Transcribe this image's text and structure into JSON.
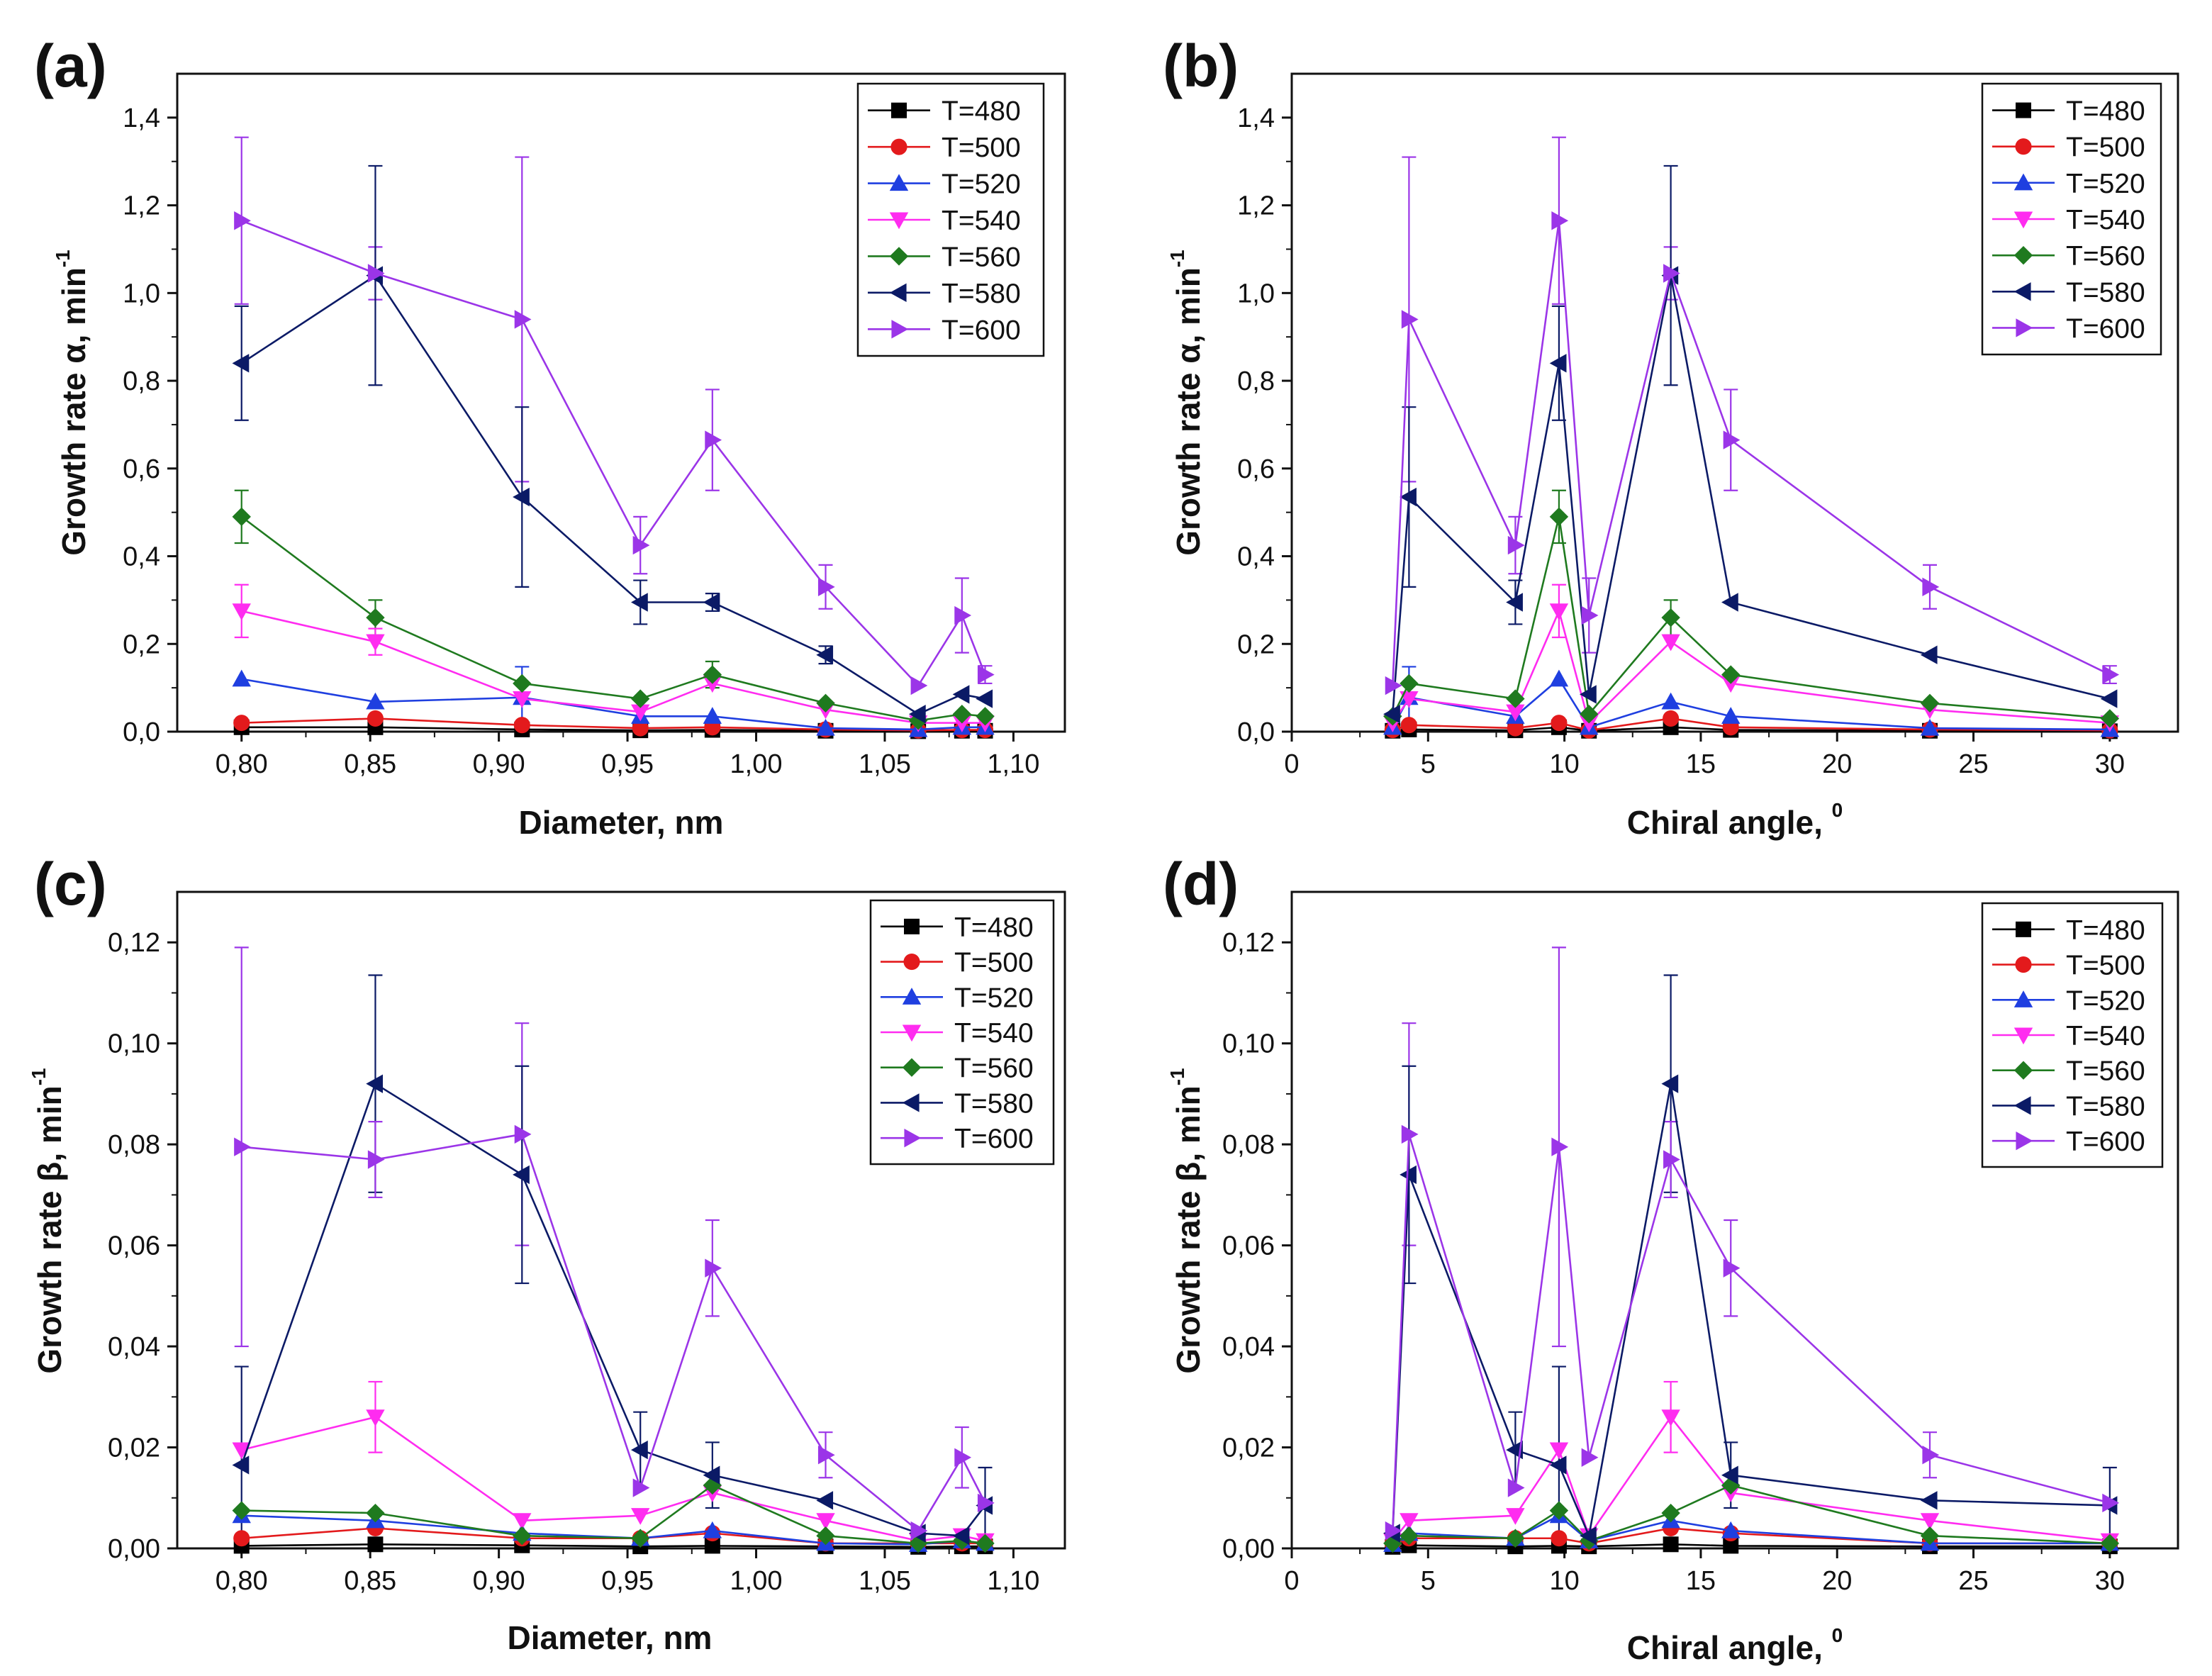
{
  "series_meta": [
    {
      "name": "T=480",
      "color": "#000000",
      "marker": "square"
    },
    {
      "name": "T=500",
      "color": "#e31a1c",
      "marker": "circle"
    },
    {
      "name": "T=520",
      "color": "#1f3fe0",
      "marker": "triangle-up"
    },
    {
      "name": "T=540",
      "color": "#ff2cf0",
      "marker": "triangle-down"
    },
    {
      "name": "T=560",
      "color": "#1f7a1f",
      "marker": "diamond"
    },
    {
      "name": "T=580",
      "color": "#0b1a66",
      "marker": "triangle-left"
    },
    {
      "name": "T=600",
      "color": "#9b35e8",
      "marker": "triangle-right"
    }
  ],
  "chart_data": [
    {
      "panel": "(a)",
      "type": "line",
      "xlabel": "Diameter, nm",
      "ylabel": "Growth rate α, min",
      "ylabel_sup": "-1",
      "xlim": [
        0.775,
        1.12
      ],
      "ylim": [
        0,
        1.5
      ],
      "xticks": [
        0.8,
        0.85,
        0.9,
        0.95,
        1.0,
        1.05,
        1.1
      ],
      "xtick_labels": [
        "0,80",
        "0,85",
        "0,90",
        "0,95",
        "1,00",
        "1,05",
        "1,10"
      ],
      "yticks": [
        0,
        0.2,
        0.4,
        0.6,
        0.8,
        1.0,
        1.2,
        1.4
      ],
      "ytick_labels": [
        "0,0",
        "0,2",
        "0,4",
        "0,6",
        "0,8",
        "1,0",
        "1,2",
        "1,4"
      ],
      "legend_position": "top-right",
      "x": [
        0.8,
        0.852,
        0.909,
        0.955,
        0.983,
        1.027,
        1.063,
        1.08,
        1.089
      ],
      "series": [
        {
          "name": "T=480",
          "values": [
            0.01,
            0.01,
            0.005,
            0.003,
            0.004,
            0.002,
            0.001,
            0.002,
            0.002
          ]
        },
        {
          "name": "T=500",
          "values": [
            0.02,
            0.03,
            0.015,
            0.008,
            0.01,
            0.005,
            0.003,
            0.004,
            0.004
          ]
        },
        {
          "name": "T=520",
          "values": [
            0.12,
            0.068,
            0.078,
            0.035,
            0.035,
            0.008,
            0.005,
            0.01,
            0.01
          ]
        },
        {
          "name": "T=540",
          "values": [
            0.275,
            0.205,
            0.075,
            0.045,
            0.11,
            0.05,
            0.02,
            0.02,
            0.02
          ]
        },
        {
          "name": "T=560",
          "values": [
            0.49,
            0.26,
            0.11,
            0.075,
            0.13,
            0.065,
            0.025,
            0.04,
            0.035
          ]
        },
        {
          "name": "T=580",
          "values": [
            0.84,
            1.04,
            0.535,
            0.295,
            0.295,
            0.175,
            0.04,
            0.085,
            0.075
          ]
        },
        {
          "name": "T=600",
          "values": [
            1.165,
            1.045,
            0.94,
            0.425,
            0.665,
            0.33,
            0.105,
            0.265,
            0.13
          ]
        }
      ],
      "error_bars": [
        {
          "series": "T=600",
          "x": 0.8,
          "err": 0.19
        },
        {
          "series": "T=580",
          "x": 0.8,
          "err": 0.13
        },
        {
          "series": "T=560",
          "x": 0.8,
          "err": 0.06
        },
        {
          "series": "T=540",
          "x": 0.8,
          "err": 0.06
        },
        {
          "series": "T=600",
          "x": 0.852,
          "err": 0.06
        },
        {
          "series": "T=580",
          "x": 0.852,
          "err": 0.25
        },
        {
          "series": "T=560",
          "x": 0.852,
          "err": 0.04
        },
        {
          "series": "T=540",
          "x": 0.852,
          "err": 0.03
        },
        {
          "series": "T=600",
          "x": 0.909,
          "err": 0.37
        },
        {
          "series": "T=580",
          "x": 0.909,
          "err": 0.205
        },
        {
          "series": "T=520",
          "x": 0.909,
          "err": 0.07
        },
        {
          "series": "T=600",
          "x": 0.955,
          "err": 0.065
        },
        {
          "series": "T=580",
          "x": 0.955,
          "err": 0.05
        },
        {
          "series": "T=600",
          "x": 0.983,
          "err": 0.115
        },
        {
          "series": "T=580",
          "x": 0.983,
          "err": 0.02
        },
        {
          "series": "T=560",
          "x": 0.983,
          "err": 0.03
        },
        {
          "series": "T=600",
          "x": 1.027,
          "err": 0.05
        },
        {
          "series": "T=580",
          "x": 1.027,
          "err": 0.02
        },
        {
          "series": "T=600",
          "x": 1.08,
          "err": 0.085
        },
        {
          "series": "T=600",
          "x": 1.089,
          "err": 0.02
        }
      ]
    },
    {
      "panel": "(b)",
      "type": "line",
      "xlabel": "Chiral angle, ",
      "xlabel_sup": "0",
      "ylabel": "Growth rate α, min",
      "ylabel_sup": "-1",
      "xlim": [
        0,
        32.5
      ],
      "ylim": [
        0,
        1.5
      ],
      "xticks": [
        0,
        5,
        10,
        15,
        20,
        25,
        30
      ],
      "xtick_labels": [
        "0",
        "5",
        "10",
        "15",
        "20",
        "25",
        "30"
      ],
      "yticks": [
        0,
        0.2,
        0.4,
        0.6,
        0.8,
        1.0,
        1.2,
        1.4
      ],
      "ytick_labels": [
        "0,0",
        "0,2",
        "0,4",
        "0,6",
        "0,8",
        "1,0",
        "1,2",
        "1,4"
      ],
      "legend_position": "top-right",
      "x": [
        3.7,
        4.3,
        8.2,
        9.8,
        10.9,
        13.9,
        16.1,
        23.4,
        30.0
      ],
      "series": [
        {
          "name": "T=480",
          "values": [
            0.002,
            0.005,
            0.003,
            0.01,
            0.002,
            0.01,
            0.004,
            0.002,
            0.001
          ]
        },
        {
          "name": "T=500",
          "values": [
            0.004,
            0.015,
            0.008,
            0.02,
            0.003,
            0.03,
            0.01,
            0.005,
            0.003
          ]
        },
        {
          "name": "T=520",
          "values": [
            0.01,
            0.078,
            0.035,
            0.12,
            0.01,
            0.068,
            0.035,
            0.008,
            0.005
          ]
        },
        {
          "name": "T=540",
          "values": [
            0.02,
            0.075,
            0.045,
            0.275,
            0.02,
            0.205,
            0.11,
            0.05,
            0.02
          ]
        },
        {
          "name": "T=560",
          "values": [
            0.035,
            0.11,
            0.075,
            0.49,
            0.04,
            0.26,
            0.13,
            0.065,
            0.03
          ]
        },
        {
          "name": "T=580",
          "values": [
            0.04,
            0.535,
            0.295,
            0.84,
            0.085,
            1.04,
            0.295,
            0.175,
            0.075
          ]
        },
        {
          "name": "T=600",
          "values": [
            0.105,
            0.94,
            0.425,
            1.165,
            0.265,
            1.045,
            0.665,
            0.33,
            0.13
          ]
        }
      ],
      "error_bars": [
        {
          "series": "T=600",
          "x": 4.3,
          "err": 0.37
        },
        {
          "series": "T=580",
          "x": 4.3,
          "err": 0.205
        },
        {
          "series": "T=520",
          "x": 4.3,
          "err": 0.07
        },
        {
          "series": "T=600",
          "x": 8.2,
          "err": 0.065
        },
        {
          "series": "T=580",
          "x": 8.2,
          "err": 0.05
        },
        {
          "series": "T=600",
          "x": 9.8,
          "err": 0.19
        },
        {
          "series": "T=580",
          "x": 9.8,
          "err": 0.13
        },
        {
          "series": "T=560",
          "x": 9.8,
          "err": 0.06
        },
        {
          "series": "T=540",
          "x": 9.8,
          "err": 0.06
        },
        {
          "series": "T=600",
          "x": 10.9,
          "err": 0.085
        },
        {
          "series": "T=600",
          "x": 13.9,
          "err": 0.06
        },
        {
          "series": "T=580",
          "x": 13.9,
          "err": 0.25
        },
        {
          "series": "T=560",
          "x": 13.9,
          "err": 0.04
        },
        {
          "series": "T=600",
          "x": 16.1,
          "err": 0.115
        },
        {
          "series": "T=600",
          "x": 23.4,
          "err": 0.05
        },
        {
          "series": "T=600",
          "x": 30.0,
          "err": 0.02
        }
      ]
    },
    {
      "panel": "(c)",
      "type": "line",
      "xlabel": "Diameter, nm",
      "ylabel": "Growth rate β, min",
      "ylabel_sup": "-1",
      "xlim": [
        0.775,
        1.12
      ],
      "ylim": [
        0,
        0.13
      ],
      "xticks": [
        0.8,
        0.85,
        0.9,
        0.95,
        1.0,
        1.05,
        1.1
      ],
      "xtick_labels": [
        "0,80",
        "0,85",
        "0,90",
        "0,95",
        "1,00",
        "1,05",
        "1,10"
      ],
      "yticks": [
        0,
        0.02,
        0.04,
        0.06,
        0.08,
        0.1,
        0.12
      ],
      "ytick_labels": [
        "0,00",
        "0,02",
        "0,04",
        "0,06",
        "0,08",
        "0,10",
        "0,12"
      ],
      "legend_position": "top-right",
      "x": [
        0.8,
        0.852,
        0.909,
        0.955,
        0.983,
        1.027,
        1.063,
        1.08,
        1.089
      ],
      "series": [
        {
          "name": "T=480",
          "values": [
            0.0005,
            0.0008,
            0.0006,
            0.0004,
            0.0005,
            0.0004,
            0.0003,
            0.0004,
            0.0004
          ]
        },
        {
          "name": "T=500",
          "values": [
            0.002,
            0.004,
            0.002,
            0.002,
            0.003,
            0.001,
            0.001,
            0.001,
            0.001
          ]
        },
        {
          "name": "T=520",
          "values": [
            0.0065,
            0.0055,
            0.003,
            0.002,
            0.0035,
            0.001,
            0.0008,
            0.0015,
            0.001
          ]
        },
        {
          "name": "T=540",
          "values": [
            0.0195,
            0.026,
            0.0055,
            0.0065,
            0.011,
            0.0055,
            0.0015,
            0.0025,
            0.0015
          ]
        },
        {
          "name": "T=560",
          "values": [
            0.0075,
            0.007,
            0.0025,
            0.002,
            0.0125,
            0.0025,
            0.001,
            0.0015,
            0.001
          ]
        },
        {
          "name": "T=580",
          "values": [
            0.0165,
            0.092,
            0.074,
            0.0195,
            0.0145,
            0.0095,
            0.003,
            0.0025,
            0.0085
          ]
        },
        {
          "name": "T=600",
          "values": [
            0.0795,
            0.077,
            0.082,
            0.012,
            0.0555,
            0.0185,
            0.0035,
            0.018,
            0.009
          ]
        }
      ],
      "error_bars": [
        {
          "series": "T=600",
          "x": 0.8,
          "err": 0.0395
        },
        {
          "series": "T=580",
          "x": 0.8,
          "err": 0.0195
        },
        {
          "series": "T=540",
          "x": 0.852,
          "err": 0.007
        },
        {
          "series": "T=580",
          "x": 0.852,
          "err": 0.0215
        },
        {
          "series": "T=600",
          "x": 0.852,
          "err": 0.0075
        },
        {
          "series": "T=600",
          "x": 0.909,
          "err": 0.022
        },
        {
          "series": "T=580",
          "x": 0.909,
          "err": 0.0215
        },
        {
          "series": "T=580",
          "x": 0.955,
          "err": 0.0075
        },
        {
          "series": "T=600",
          "x": 0.983,
          "err": 0.0095
        },
        {
          "series": "T=580",
          "x": 0.983,
          "err": 0.0065
        },
        {
          "series": "T=600",
          "x": 1.027,
          "err": 0.0045
        },
        {
          "series": "T=600",
          "x": 1.08,
          "err": 0.006
        },
        {
          "series": "T=580",
          "x": 1.089,
          "err": 0.0075
        }
      ]
    },
    {
      "panel": "(d)",
      "type": "line",
      "xlabel": "Chiral angle, ",
      "xlabel_sup": "0",
      "ylabel": "Growth rate β, min",
      "ylabel_sup": "-1",
      "xlim": [
        0,
        32.5
      ],
      "ylim": [
        0,
        0.13
      ],
      "xticks": [
        0,
        5,
        10,
        15,
        20,
        25,
        30
      ],
      "xtick_labels": [
        "0",
        "5",
        "10",
        "15",
        "20",
        "25",
        "30"
      ],
      "yticks": [
        0,
        0.02,
        0.04,
        0.06,
        0.08,
        0.1,
        0.12
      ],
      "ytick_labels": [
        "0,00",
        "0,02",
        "0,04",
        "0,06",
        "0,08",
        "0,10",
        "0,12"
      ],
      "legend_position": "top-right",
      "x": [
        3.7,
        4.3,
        8.2,
        9.8,
        10.9,
        13.9,
        16.1,
        23.4,
        30.0
      ],
      "series": [
        {
          "name": "T=480",
          "values": [
            0.0003,
            0.0006,
            0.0004,
            0.0005,
            0.0004,
            0.0008,
            0.0005,
            0.0004,
            0.0004
          ]
        },
        {
          "name": "T=500",
          "values": [
            0.001,
            0.002,
            0.002,
            0.002,
            0.001,
            0.004,
            0.003,
            0.001,
            0.001
          ]
        },
        {
          "name": "T=520",
          "values": [
            0.0008,
            0.003,
            0.002,
            0.0065,
            0.0015,
            0.0055,
            0.0035,
            0.001,
            0.001
          ]
        },
        {
          "name": "T=540",
          "values": [
            0.0015,
            0.0055,
            0.0065,
            0.0195,
            0.0025,
            0.026,
            0.011,
            0.0055,
            0.0015
          ]
        },
        {
          "name": "T=560",
          "values": [
            0.001,
            0.0025,
            0.002,
            0.0075,
            0.0015,
            0.007,
            0.0125,
            0.0025,
            0.001
          ]
        },
        {
          "name": "T=580",
          "values": [
            0.003,
            0.074,
            0.0195,
            0.0165,
            0.0025,
            0.092,
            0.0145,
            0.0095,
            0.0085
          ]
        },
        {
          "name": "T=600",
          "values": [
            0.0035,
            0.082,
            0.012,
            0.0795,
            0.018,
            0.077,
            0.0555,
            0.0185,
            0.009
          ]
        }
      ],
      "error_bars": [
        {
          "series": "T=600",
          "x": 4.3,
          "err": 0.022
        },
        {
          "series": "T=580",
          "x": 4.3,
          "err": 0.0215
        },
        {
          "series": "T=580",
          "x": 8.2,
          "err": 0.0075
        },
        {
          "series": "T=600",
          "x": 9.8,
          "err": 0.0395
        },
        {
          "series": "T=580",
          "x": 9.8,
          "err": 0.0195
        },
        {
          "series": "T=540",
          "x": 13.9,
          "err": 0.007
        },
        {
          "series": "T=580",
          "x": 13.9,
          "err": 0.0215
        },
        {
          "series": "T=600",
          "x": 13.9,
          "err": 0.0075
        },
        {
          "series": "T=600",
          "x": 16.1,
          "err": 0.0095
        },
        {
          "series": "T=580",
          "x": 16.1,
          "err": 0.0065
        },
        {
          "series": "T=600",
          "x": 23.4,
          "err": 0.0045
        },
        {
          "series": "T=580",
          "x": 30.0,
          "err": 0.0075
        }
      ]
    }
  ]
}
